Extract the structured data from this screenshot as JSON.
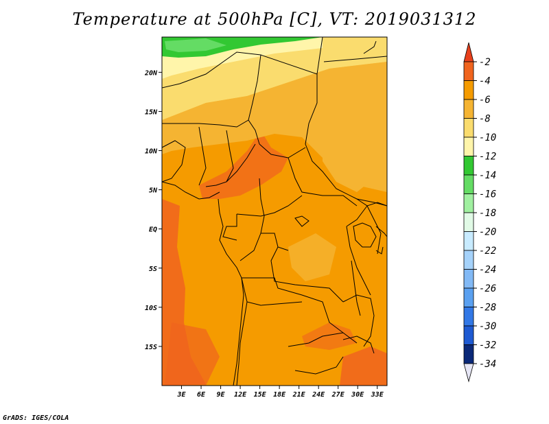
{
  "title": "Temperature at 500hPa [C], VT: 2019031312",
  "credit": "GrADS: IGES/COLA",
  "map": {
    "lon_range": [
      0,
      34.5
    ],
    "lat_range": [
      -20,
      24.5
    ],
    "lat_ticks": [
      {
        "value": 20,
        "label": "20N"
      },
      {
        "value": 15,
        "label": "15N"
      },
      {
        "value": 10,
        "label": "10N"
      },
      {
        "value": 5,
        "label": "5N"
      },
      {
        "value": 0,
        "label": "EQ"
      },
      {
        "value": -5,
        "label": "5S"
      },
      {
        "value": -10,
        "label": "10S"
      },
      {
        "value": -15,
        "label": "15S"
      }
    ],
    "lon_ticks": [
      {
        "value": 3,
        "label": "3E"
      },
      {
        "value": 6,
        "label": "6E"
      },
      {
        "value": 9,
        "label": "9E"
      },
      {
        "value": 12,
        "label": "12E"
      },
      {
        "value": 15,
        "label": "15E"
      },
      {
        "value": 18,
        "label": "18E"
      },
      {
        "value": 21,
        "label": "21E"
      },
      {
        "value": 24,
        "label": "24E"
      },
      {
        "value": 27,
        "label": "27E"
      },
      {
        "value": 30,
        "label": "30E"
      },
      {
        "value": 33,
        "label": "33E"
      }
    ]
  },
  "colorbar": {
    "labels": [
      "-2",
      "-4",
      "-6",
      "-8",
      "-10",
      "-12",
      "-14",
      "-16",
      "-18",
      "-20",
      "-22",
      "-24",
      "-26",
      "-28",
      "-30",
      "-32",
      "-34"
    ],
    "top_arrow_color": "#e8401c",
    "bottom_arrow_color": "#e6e6f5",
    "colors": [
      "#f0641e",
      "#f59b00",
      "#f5b432",
      "#fadc6e",
      "#fff5aa",
      "#32c832",
      "#64dc64",
      "#a0f0a0",
      "#e1fae6",
      "#c8ebff",
      "#a5d2fa",
      "#82b9f5",
      "#5aa0f0",
      "#3278e6",
      "#1e5ad2",
      "#0a2878",
      "#1e1450"
    ]
  }
}
